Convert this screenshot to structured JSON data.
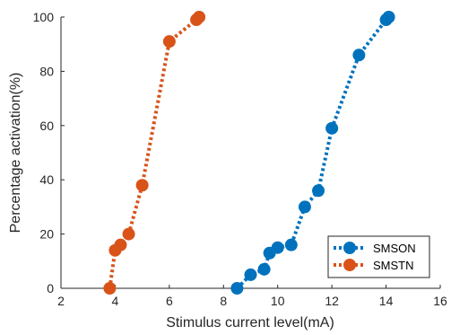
{
  "chart_data": {
    "type": "line",
    "xlabel": "Stimulus current level(mA)",
    "ylabel": "Percentage activation(%)",
    "xlim": [
      2,
      16
    ],
    "ylim": [
      0,
      100
    ],
    "xticks": [
      "2",
      "4",
      "6",
      "8",
      "10",
      "12",
      "14",
      "16"
    ],
    "yticks": [
      "0",
      "20",
      "40",
      "60",
      "80",
      "100"
    ],
    "grid": false,
    "legend_position": "bottom-right",
    "series": [
      {
        "name": "SMSON",
        "color": "#0072BD",
        "x": [
          8.5,
          9.0,
          9.5,
          9.7,
          10.0,
          10.5,
          11.0,
          11.5,
          12.0,
          13.0,
          14.0,
          14.1
        ],
        "y": [
          0,
          5,
          7,
          13,
          15,
          16,
          30,
          36,
          59,
          86,
          99,
          100
        ]
      },
      {
        "name": "SMSTN",
        "color": "#D95319",
        "x": [
          3.8,
          4.0,
          4.2,
          4.5,
          5.0,
          6.0,
          7.0,
          7.1
        ],
        "y": [
          0,
          14,
          16,
          20,
          38,
          91,
          99,
          100
        ]
      }
    ]
  }
}
